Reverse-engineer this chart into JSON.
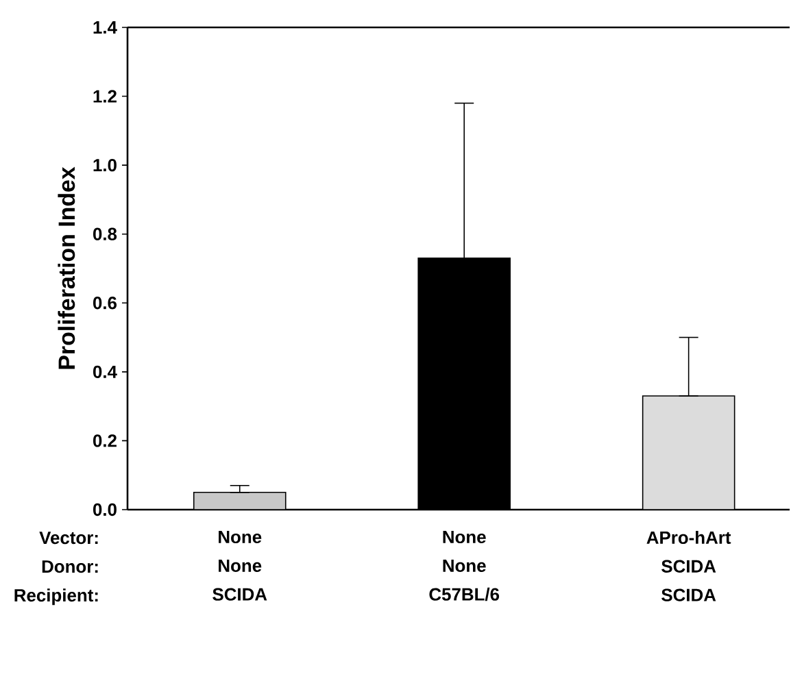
{
  "chart_data": {
    "type": "bar",
    "ylabel": "Proliferation Index",
    "categories": [
      "None",
      "None",
      "APro-hArt"
    ],
    "values": [
      0.05,
      0.73,
      0.33
    ],
    "errors": [
      [
        0.05,
        0.07
      ],
      [
        0.73,
        1.18
      ],
      [
        0.33,
        0.5
      ]
    ],
    "colors": [
      "#c8c8c8",
      "#000000",
      "#dcdcdc"
    ],
    "ylim": [
      0,
      1.4
    ],
    "yticks": [
      {
        "value": 0,
        "label": "0.0"
      },
      0.2,
      0.4,
      0.6,
      0.8,
      {
        "value": 1,
        "label": "1.0"
      },
      1.2,
      1.4
    ],
    "annotations": [
      "Vector:",
      "Donor:",
      "Recipient:",
      "None",
      "None",
      "SCIDA",
      "SCIDA",
      "C57BL/6",
      "SCIDA"
    ],
    "grid": false
  }
}
